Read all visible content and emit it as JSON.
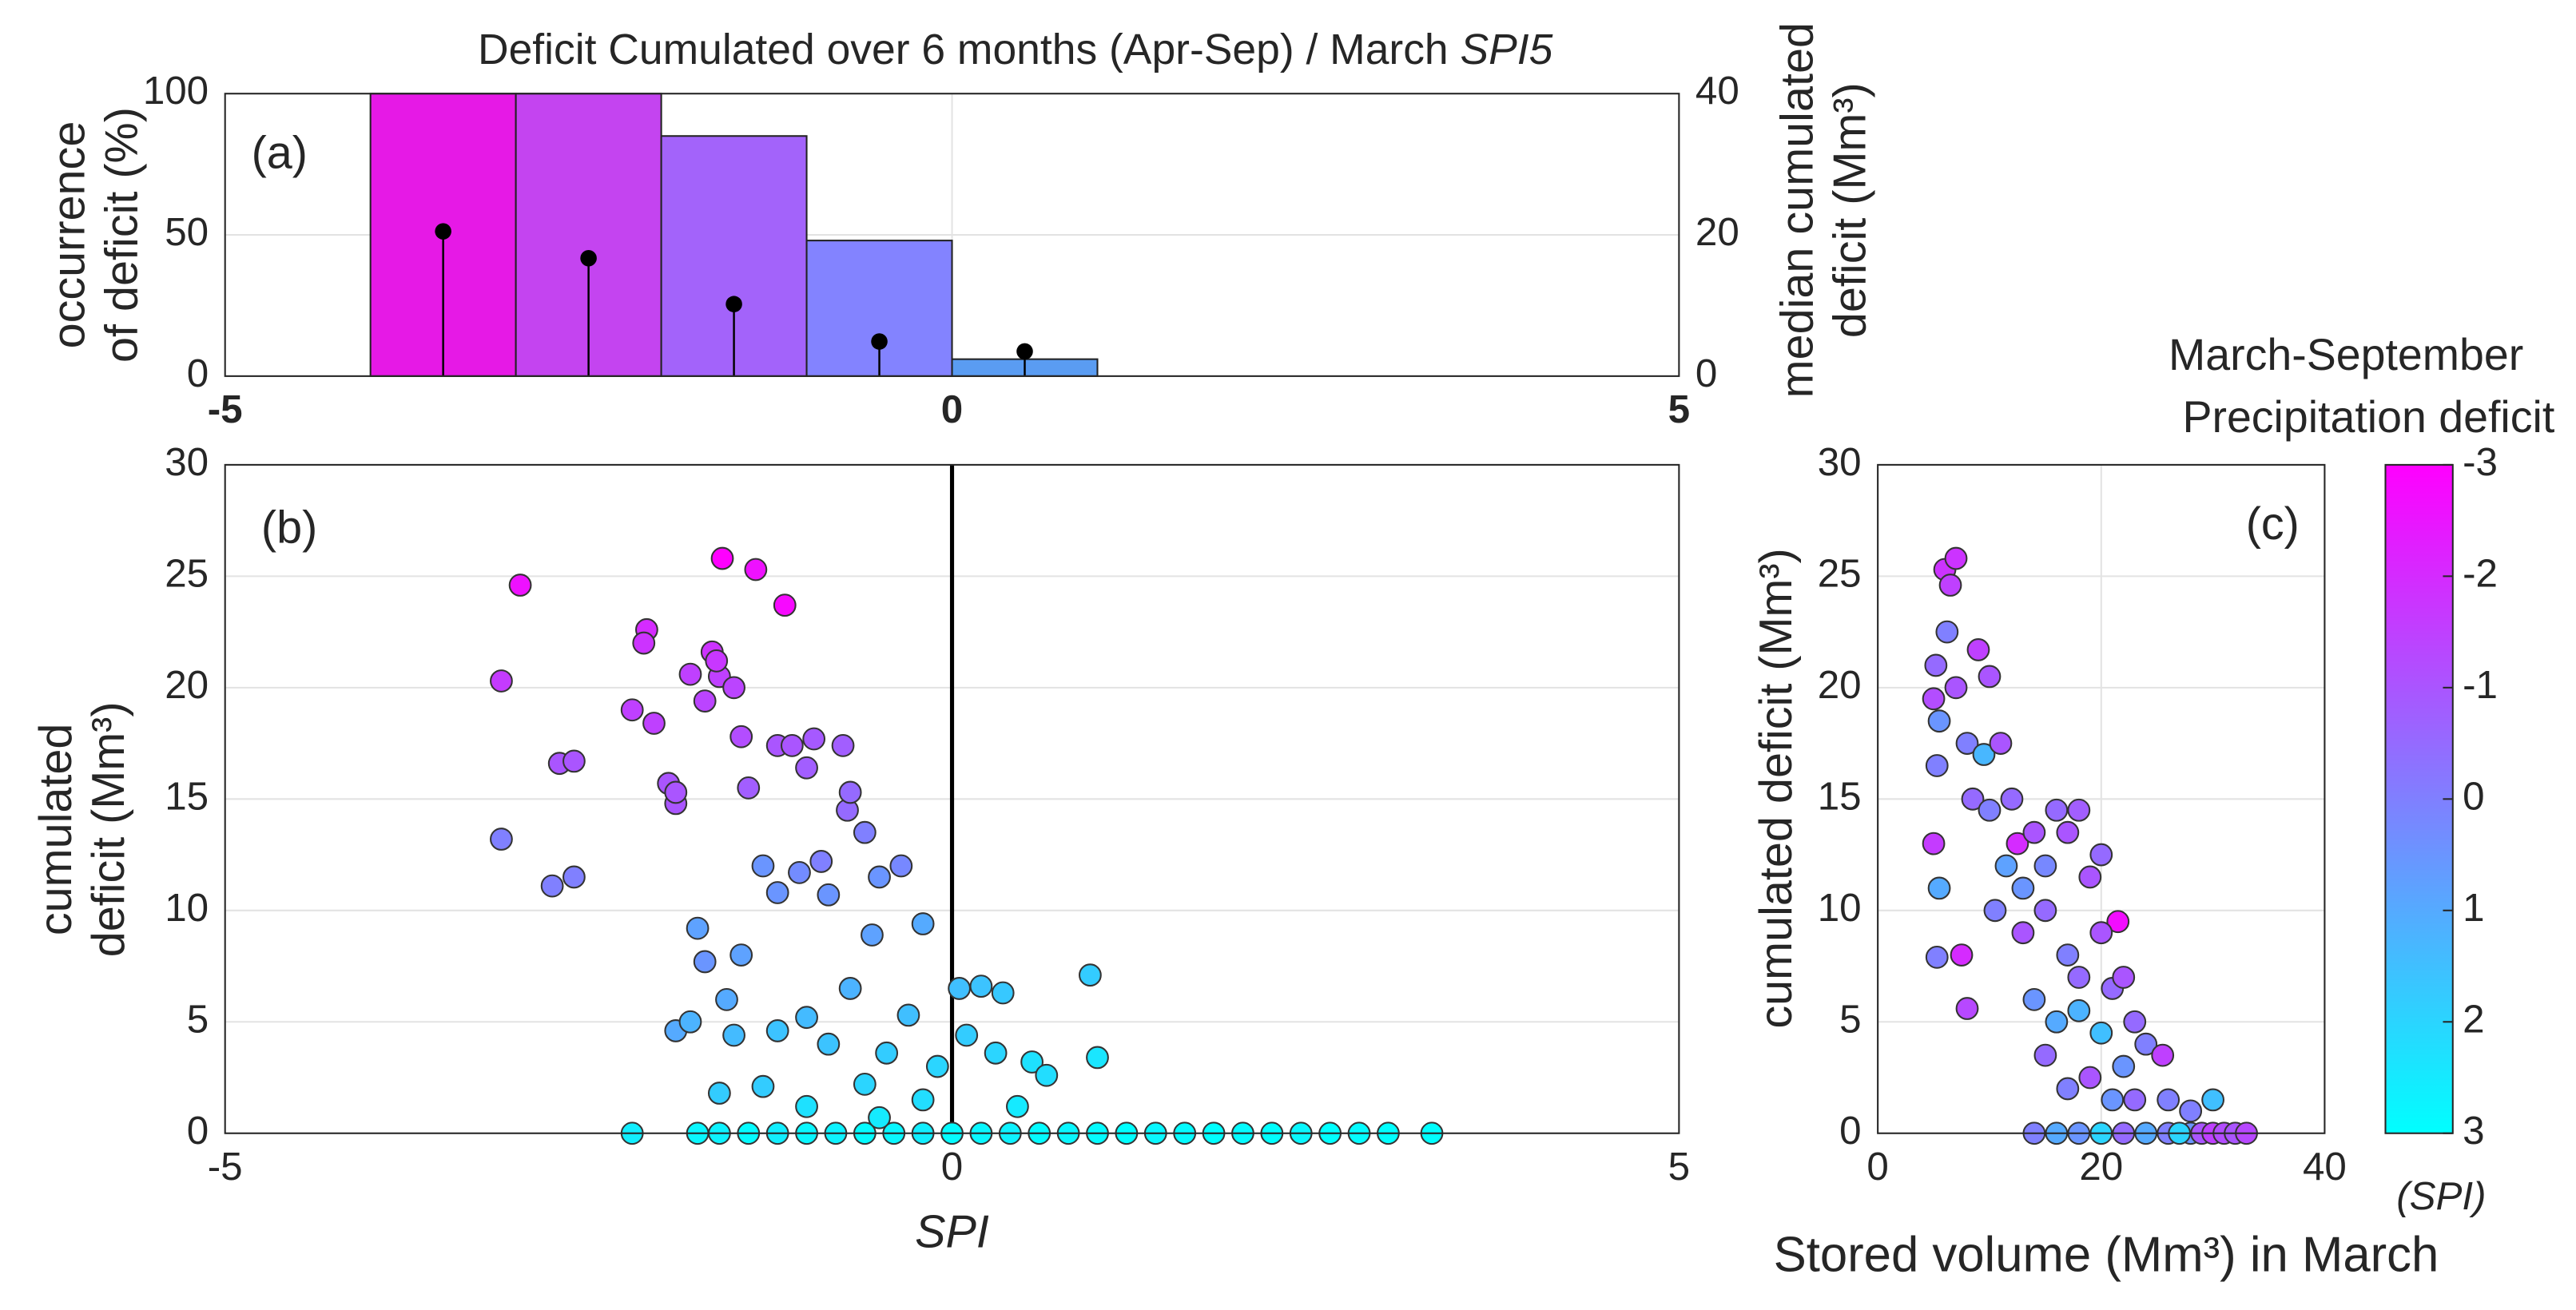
{
  "chart_data": [
    {
      "type": "histogram",
      "panel_label": "(a)",
      "title": "Deficit Cumulated over 6 months (Apr-Sep) / March",
      "title_italic": "SPI5",
      "ylabel": [
        "occurrence",
        "of deficit (%)"
      ],
      "y2label": [
        "median cumulated",
        "deficit (Mm³)"
      ],
      "bins": [
        -5,
        -4,
        -3,
        -2,
        -1,
        0,
        1,
        2,
        3,
        4,
        5
      ],
      "values": [
        0,
        100,
        100,
        85,
        48,
        6,
        0,
        0,
        0,
        0
      ],
      "colors": [
        "#ffffff",
        "#e619e6",
        "#c444f0",
        "#a363fa",
        "#8383ff",
        "#5a9cf2",
        "#ffffff",
        "#ffffff",
        "#ffffff",
        "#ffffff"
      ],
      "stems": {
        "x": [
          -3.5,
          -2.5,
          -1.5,
          -0.5,
          0.5
        ],
        "values": [
          20.5,
          16.7,
          10.2,
          4.9,
          3.5
        ],
        "axis": "y2",
        "color": "#000000"
      },
      "xlim": [
        -5,
        5
      ],
      "xticks": [
        -5,
        0,
        5
      ],
      "ylim": [
        0,
        100
      ],
      "yticks": [
        0,
        50,
        100
      ],
      "y2lim": [
        0,
        40
      ],
      "y2ticks": [
        0,
        20,
        40
      ],
      "grid": true
    },
    {
      "type": "scatter",
      "panel_label": "(b)",
      "xlabel": "SPI",
      "ylabel": [
        "cumulated",
        "deficit (Mm³)"
      ],
      "xlim": [
        -5,
        5
      ],
      "xticks": [
        -5,
        0,
        5
      ],
      "ylim": [
        0,
        30
      ],
      "yticks": [
        0,
        5,
        10,
        15,
        20,
        25,
        30
      ],
      "grid": true,
      "x": [
        -3.1,
        -2.97,
        -3.1,
        -2.7,
        -2.6,
        -2.75,
        -2.6,
        -2.2,
        -2.1,
        -2.12,
        -2.05,
        -1.95,
        -1.9,
        -1.9,
        -1.8,
        -1.7,
        -1.65,
        -1.6,
        -1.62,
        -1.5,
        -1.58,
        -1.35,
        -1.15,
        -1.45,
        -1.4,
        -1.2,
        -1.1,
        -1.0,
        -0.95,
        -0.75,
        -0.72,
        -0.7,
        -0.6,
        -1.3,
        -1.2,
        -1.05,
        -0.9,
        -0.85,
        -0.5,
        -0.35,
        -0.55,
        -0.2,
        -1.75,
        -1.7,
        -1.45,
        -1.55,
        -1.9,
        -1.8,
        -1.5,
        -1.6,
        -1.3,
        -1.2,
        -1.0,
        -0.85,
        -0.7,
        -0.6,
        -0.45,
        -0.3,
        -0.2,
        -0.1,
        0.05,
        0.2,
        0.35,
        0.1,
        0.3,
        0.55,
        0.65,
        1.0,
        0.95,
        0.45,
        -0.5,
        -1.0,
        -2.2,
        -1.75,
        -1.6,
        -1.4,
        -1.2,
        -1.0,
        -0.8,
        -0.6,
        -0.4,
        -0.2,
        0,
        0.2,
        0.4,
        0.6,
        0.8,
        1.0,
        1.2,
        1.4,
        1.6,
        1.8,
        2.0,
        2.2,
        2.4,
        2.6,
        2.8,
        3.0,
        3.3
      ],
      "values": [
        20.3,
        24.6,
        13.2,
        16.6,
        16.7,
        11.1,
        11.5,
        19,
        22.6,
        22,
        18.4,
        15.7,
        14.8,
        15.3,
        20.6,
        19.4,
        21.6,
        20.5,
        21.2,
        20,
        25.8,
        25.3,
        23.7,
        17.8,
        15.5,
        17.4,
        17.4,
        16.4,
        17.7,
        17.4,
        14.5,
        15.3,
        13.5,
        12,
        10.8,
        11.7,
        12.2,
        10.7,
        11.5,
        12,
        8.9,
        9.4,
        9.2,
        7.7,
        8,
        6,
        4.6,
        5,
        4.4,
        1.8,
        2.1,
        4.6,
        5.2,
        4,
        6.5,
        2.2,
        3.6,
        5.3,
        1.5,
        3,
        6.5,
        6.6,
        6.3,
        4.4,
        3.6,
        3.2,
        2.6,
        3.4,
        7.1,
        1.2,
        0.7,
        1.2,
        0,
        0,
        0,
        0,
        0,
        0,
        0,
        0,
        0,
        0,
        0,
        0,
        0,
        0,
        0,
        0,
        0,
        0,
        0,
        0,
        0,
        0,
        0,
        0,
        0,
        0,
        0
      ],
      "color_values": [
        -1.6,
        -2.6,
        0,
        -1,
        -1,
        0,
        0,
        -1.5,
        -2,
        -1.8,
        -1.5,
        -1,
        -1,
        -1,
        -1.5,
        -1.4,
        -1.8,
        -1.5,
        -1.7,
        -1.4,
        -3,
        -2.6,
        -2.8,
        -1.2,
        -0.8,
        -1,
        -1,
        -0.8,
        -0.9,
        -0.8,
        -0.5,
        -0.5,
        0,
        0.5,
        0.5,
        0.3,
        0,
        0.5,
        0.5,
        0.2,
        0.8,
        1,
        0.8,
        0.5,
        0.8,
        1,
        1,
        1.2,
        1.4,
        1.8,
        1.8,
        1.6,
        1.4,
        1.6,
        1.2,
        2,
        1.8,
        1.5,
        2.2,
        2,
        1.5,
        1.6,
        1.7,
        1.8,
        2,
        2.3,
        2.2,
        2.4,
        1.8,
        2.5,
        2.5,
        2.3,
        2.6,
        2.8,
        2.7,
        2.9,
        2.6,
        2.8,
        2.7,
        2.9,
        2.8,
        2.6,
        2.9,
        2.8,
        2.7,
        2.9,
        2.8,
        2.9,
        3,
        2.8,
        2.9,
        3,
        2.9,
        3,
        2.8,
        3,
        2.9,
        3,
        3
      ]
    },
    {
      "type": "scatter",
      "panel_label": "(c)",
      "xlabel": "Stored volume (Mm³) in March",
      "ylabel": [
        "cumulated deficit (Mm³)"
      ],
      "xlim": [
        0,
        40
      ],
      "xticks": [
        0,
        20,
        40
      ],
      "ylim": [
        0,
        30
      ],
      "yticks": [
        0,
        5,
        10,
        15,
        20,
        25,
        30
      ],
      "grid": true,
      "x": [
        5,
        5.2,
        6,
        6.5,
        7,
        6.2,
        5.5,
        5.3,
        5,
        5.5,
        5.3,
        7.5,
        8,
        7,
        8,
        9,
        10,
        8.5,
        9.5,
        10,
        11,
        12,
        11.5,
        10.5,
        12.5,
        13,
        14,
        15,
        16,
        17,
        18,
        19,
        20,
        21.5,
        13,
        15,
        17,
        18,
        20,
        21,
        22,
        23,
        24,
        25.5,
        14,
        16,
        18,
        20,
        22,
        15,
        17,
        19,
        21,
        23,
        26,
        28,
        30,
        14,
        16,
        18,
        20,
        22,
        24,
        26,
        28,
        29,
        30,
        31,
        32,
        33,
        27
      ],
      "values": [
        19.5,
        21,
        25.3,
        24.6,
        25.8,
        22.5,
        18.5,
        16.5,
        13,
        11,
        7.9,
        8,
        5.6,
        20,
        17.5,
        21.7,
        20.5,
        15,
        17,
        14.5,
        17.5,
        15,
        12,
        10,
        13,
        11,
        13.5,
        12,
        14.5,
        13.5,
        14.5,
        11.5,
        12.5,
        9.5,
        9,
        10,
        8,
        7,
        9,
        6.5,
        7,
        5,
        4,
        3.5,
        6,
        5,
        5.5,
        4.5,
        3,
        3.5,
        2,
        2.5,
        1.5,
        1.5,
        1.5,
        1,
        1.5,
        0,
        0,
        0,
        0,
        0,
        0,
        0,
        0,
        0,
        0,
        0,
        0,
        0,
        0
      ],
      "color_values": [
        -1.2,
        -0.5,
        -1.8,
        -1.5,
        -1.8,
        0,
        0.5,
        0,
        -1.6,
        1,
        0,
        -2,
        -1.3,
        -1,
        0,
        -1.5,
        -1,
        -0.5,
        1.3,
        0,
        -1,
        -0.5,
        0.8,
        0,
        -2,
        0.5,
        -1,
        0.2,
        -0.5,
        -1,
        -0.8,
        -1,
        -0.5,
        -2.7,
        -1,
        -0.5,
        0,
        -0.5,
        -1,
        -0.5,
        -1,
        -0.5,
        0,
        -1.5,
        0.5,
        1,
        1.2,
        1.5,
        0.5,
        -0.5,
        0,
        -1,
        0.5,
        -0.5,
        0,
        0,
        1.5,
        0,
        1,
        0.5,
        2,
        -0.5,
        1,
        0,
        0.5,
        -1,
        -1.5,
        -1.2,
        -1,
        -1.3,
        2
      ],
      "colorbar": {
        "title": [
          "March-September",
          "Precipitation deficit"
        ],
        "label": "(SPI)",
        "lim": [
          -3,
          3
        ],
        "ticks": [
          -3,
          -2,
          -1,
          0,
          1,
          2,
          3
        ],
        "colors": [
          "#ff00ff",
          "#00ffff"
        ]
      }
    }
  ]
}
